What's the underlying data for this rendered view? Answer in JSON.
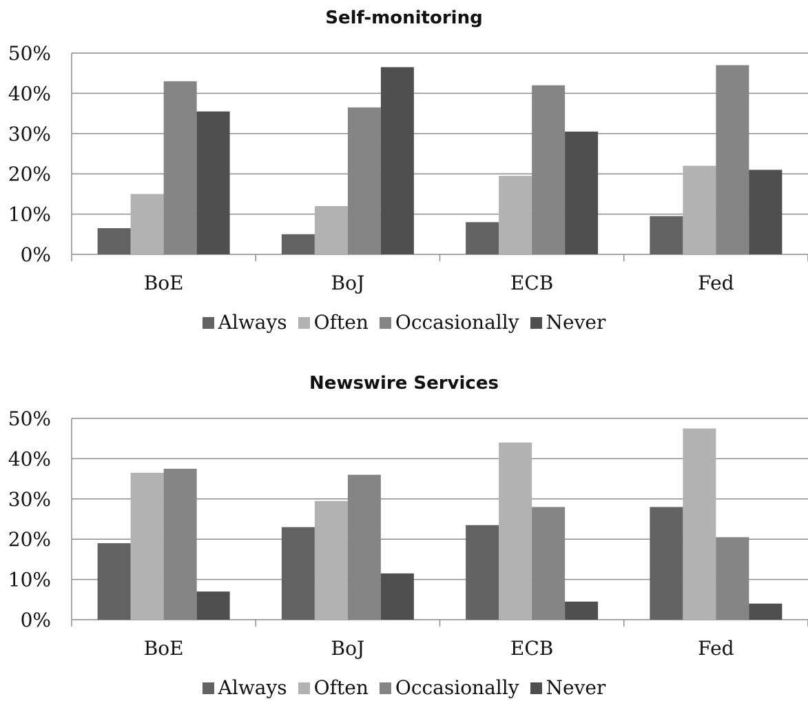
{
  "chart_data": [
    {
      "type": "bar",
      "title": "Self-monitoring",
      "categories": [
        "BoE",
        "BoJ",
        "ECB",
        "Fed"
      ],
      "series": [
        {
          "name": "Always",
          "values": [
            6.5,
            5.0,
            8.0,
            9.5
          ]
        },
        {
          "name": "Often",
          "values": [
            15.0,
            12.0,
            19.5,
            22.0
          ]
        },
        {
          "name": "Occasionally",
          "values": [
            43.0,
            36.5,
            42.0,
            47.0
          ]
        },
        {
          "name": "Never",
          "values": [
            35.5,
            46.5,
            30.5,
            21.0
          ]
        }
      ],
      "ylim": [
        0,
        50
      ],
      "yticks": [
        "0%",
        "10%",
        "20%",
        "30%",
        "40%",
        "50%"
      ],
      "grid": true,
      "legend": "bottom",
      "xlabel": "",
      "ylabel": ""
    },
    {
      "type": "bar",
      "title": "Newswire Services",
      "categories": [
        "BoE",
        "BoJ",
        "ECB",
        "Fed"
      ],
      "series": [
        {
          "name": "Always",
          "values": [
            19.0,
            23.0,
            23.5,
            28.0
          ]
        },
        {
          "name": "Often",
          "values": [
            36.5,
            29.5,
            44.0,
            47.5
          ]
        },
        {
          "name": "Occasionally",
          "values": [
            37.5,
            36.0,
            28.0,
            20.5
          ]
        },
        {
          "name": "Never",
          "values": [
            7.0,
            11.5,
            4.5,
            4.0
          ]
        }
      ],
      "ylim": [
        0,
        50
      ],
      "yticks": [
        "0%",
        "10%",
        "20%",
        "30%",
        "40%",
        "50%"
      ],
      "grid": true,
      "legend": "bottom",
      "xlabel": "",
      "ylabel": ""
    }
  ],
  "colors": {
    "Always": "#626262",
    "Often": "#b2b2b2",
    "Occasionally": "#858585",
    "Never": "#4f4f4f",
    "gridline": "#8c8c8c",
    "axis": "#8c8c8c"
  }
}
